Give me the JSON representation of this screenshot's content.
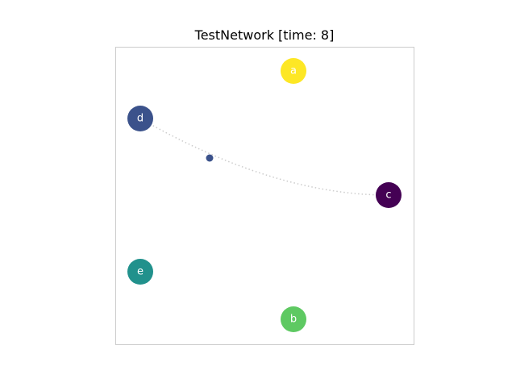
{
  "title": "TestNetwork [time: 8]",
  "colors": {
    "frame": "#cccccc",
    "edge": "#cccccc"
  },
  "nodes": [
    {
      "id": "a",
      "label": "a",
      "color": "#fde725"
    },
    {
      "id": "b",
      "label": "b",
      "color": "#5ec962"
    },
    {
      "id": "c",
      "label": "c",
      "color": "#440154"
    },
    {
      "id": "d",
      "label": "d",
      "color": "#3b528b"
    },
    {
      "id": "e",
      "label": "e",
      "color": "#21918c"
    }
  ],
  "edges": [
    {
      "source": "d",
      "target": "c",
      "style": "dotted",
      "packet_color": "#3b528b"
    }
  ]
}
